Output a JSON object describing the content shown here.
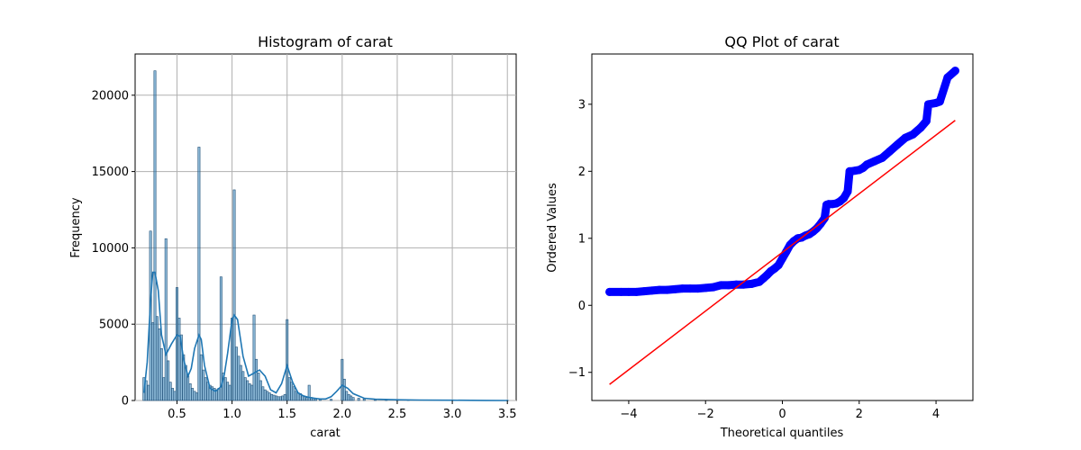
{
  "chart_data": [
    {
      "type": "bar",
      "title": "Histogram of carat",
      "xlabel": "carat",
      "ylabel": "Frequency",
      "xlim": [
        0.12,
        3.58
      ],
      "ylim": [
        0,
        22700
      ],
      "grid": true,
      "xticks": [
        0.5,
        1.0,
        1.5,
        2.0,
        2.5,
        3.0,
        3.5
      ],
      "xtick_labels": [
        "0.5",
        "1.0",
        "1.5",
        "2.0",
        "2.5",
        "3.0",
        "3.5"
      ],
      "yticks": [
        0,
        5000,
        10000,
        15000,
        20000
      ],
      "ytick_labels": [
        "0",
        "5000",
        "10000",
        "15000",
        "20000"
      ],
      "bar_color": "#1f77b4",
      "bins": {
        "x": [
          0.2,
          0.22,
          0.24,
          0.26,
          0.28,
          0.3,
          0.32,
          0.34,
          0.36,
          0.38,
          0.4,
          0.42,
          0.44,
          0.46,
          0.48,
          0.5,
          0.52,
          0.54,
          0.56,
          0.58,
          0.6,
          0.62,
          0.64,
          0.66,
          0.68,
          0.7,
          0.72,
          0.74,
          0.76,
          0.78,
          0.8,
          0.82,
          0.84,
          0.86,
          0.88,
          0.9,
          0.92,
          0.94,
          0.96,
          0.98,
          1.0,
          1.02,
          1.04,
          1.06,
          1.08,
          1.1,
          1.12,
          1.14,
          1.16,
          1.18,
          1.2,
          1.22,
          1.24,
          1.26,
          1.28,
          1.3,
          1.32,
          1.34,
          1.36,
          1.38,
          1.4,
          1.42,
          1.44,
          1.46,
          1.48,
          1.5,
          1.52,
          1.54,
          1.56,
          1.58,
          1.6,
          1.62,
          1.64,
          1.66,
          1.68,
          1.7,
          1.72,
          1.74,
          1.76,
          1.8,
          1.9,
          2.0,
          2.02,
          2.04,
          2.06,
          2.08,
          2.1,
          2.15,
          2.2,
          2.3,
          2.4,
          2.5,
          2.6
        ],
        "values": [
          1500,
          1300,
          1000,
          11100,
          5100,
          21600,
          5500,
          4700,
          3400,
          1500,
          10600,
          2600,
          1200,
          800,
          600,
          7400,
          5400,
          4300,
          3000,
          2300,
          1600,
          1100,
          800,
          600,
          500,
          16600,
          3000,
          2000,
          1500,
          1200,
          1000,
          900,
          800,
          700,
          800,
          8100,
          1800,
          1500,
          1200,
          1000,
          5400,
          13800,
          3500,
          2900,
          2300,
          1900,
          1500,
          1300,
          1100,
          1000,
          5600,
          2700,
          1800,
          1300,
          900,
          700,
          600,
          500,
          400,
          350,
          300,
          250,
          250,
          300,
          400,
          5300,
          1500,
          1200,
          900,
          600,
          500,
          450,
          300,
          250,
          200,
          1000,
          200,
          150,
          120,
          100,
          80,
          2700,
          1400,
          600,
          400,
          300,
          200,
          150,
          100,
          80,
          60,
          40,
          20
        ]
      },
      "kde": {
        "x": [
          0.2,
          0.23,
          0.26,
          0.28,
          0.3,
          0.33,
          0.36,
          0.4,
          0.45,
          0.5,
          0.53,
          0.56,
          0.6,
          0.63,
          0.66,
          0.7,
          0.72,
          0.75,
          0.8,
          0.85,
          0.9,
          0.93,
          0.96,
          1.0,
          1.02,
          1.05,
          1.1,
          1.15,
          1.2,
          1.25,
          1.3,
          1.35,
          1.4,
          1.45,
          1.5,
          1.55,
          1.6,
          1.65,
          1.7,
          1.75,
          1.8,
          1.85,
          1.9,
          1.95,
          2.0,
          2.05,
          2.1,
          2.2,
          2.3,
          2.5,
          2.7,
          3.0,
          3.3,
          3.51
        ],
        "y": [
          500,
          2500,
          6500,
          8400,
          8400,
          7200,
          4300,
          3000,
          3700,
          4300,
          4200,
          2700,
          1600,
          2100,
          3400,
          4300,
          4000,
          2300,
          800,
          600,
          900,
          1700,
          3100,
          5300,
          5600,
          5300,
          2900,
          1600,
          1800,
          2000,
          1600,
          700,
          500,
          1100,
          2300,
          1200,
          500,
          300,
          200,
          150,
          100,
          100,
          250,
          600,
          1000,
          800,
          450,
          150,
          80,
          50,
          30,
          15,
          5,
          0
        ]
      }
    },
    {
      "type": "scatter",
      "title": "QQ Plot of carat",
      "xlabel": "Theoretical quantiles",
      "ylabel": "Ordered Values",
      "xlim": [
        -4.96,
        4.96
      ],
      "ylim": [
        -1.42,
        3.75
      ],
      "grid": false,
      "xticks": [
        -4,
        -2,
        0,
        2,
        4
      ],
      "xtick_labels": [
        "−4",
        "−2",
        "0",
        "2",
        "4"
      ],
      "yticks": [
        -1,
        0,
        1,
        2,
        3
      ],
      "ytick_labels": [
        "−1",
        "0",
        "1",
        "2",
        "3"
      ],
      "point_color": "#0000ff",
      "line_color": "#ff0000",
      "points": {
        "x": [
          -4.5,
          -4.2,
          -4.0,
          -3.8,
          -3.6,
          -3.4,
          -3.2,
          -3.0,
          -2.8,
          -2.6,
          -2.4,
          -2.2,
          -2.0,
          -1.8,
          -1.6,
          -1.4,
          -1.2,
          -1.0,
          -0.8,
          -0.6,
          -0.5,
          -0.4,
          -0.3,
          -0.2,
          -0.1,
          0.0,
          0.1,
          0.2,
          0.3,
          0.4,
          0.5,
          0.6,
          0.7,
          0.8,
          0.9,
          1.0,
          1.1,
          1.15,
          1.2,
          1.3,
          1.4,
          1.5,
          1.6,
          1.7,
          1.75,
          1.8,
          1.9,
          2.0,
          2.1,
          2.2,
          2.4,
          2.6,
          2.8,
          3.0,
          3.2,
          3.4,
          3.6,
          3.75,
          3.8,
          4.0,
          4.1,
          4.3,
          4.5
        ],
        "y": [
          0.2,
          0.2,
          0.2,
          0.2,
          0.21,
          0.22,
          0.23,
          0.23,
          0.24,
          0.25,
          0.25,
          0.25,
          0.26,
          0.27,
          0.3,
          0.3,
          0.31,
          0.31,
          0.32,
          0.35,
          0.4,
          0.45,
          0.51,
          0.55,
          0.6,
          0.7,
          0.8,
          0.9,
          0.96,
          1.0,
          1.01,
          1.04,
          1.06,
          1.1,
          1.15,
          1.22,
          1.3,
          1.5,
          1.51,
          1.51,
          1.52,
          1.55,
          1.6,
          1.7,
          2.0,
          2.0,
          2.01,
          2.02,
          2.05,
          2.1,
          2.15,
          2.2,
          2.3,
          2.4,
          2.5,
          2.55,
          2.65,
          2.75,
          3.0,
          3.02,
          3.04,
          3.4,
          3.5
        ]
      },
      "fit_line": {
        "x": [
          -4.5,
          4.5
        ],
        "y": [
          -1.18,
          2.76
        ]
      }
    }
  ]
}
